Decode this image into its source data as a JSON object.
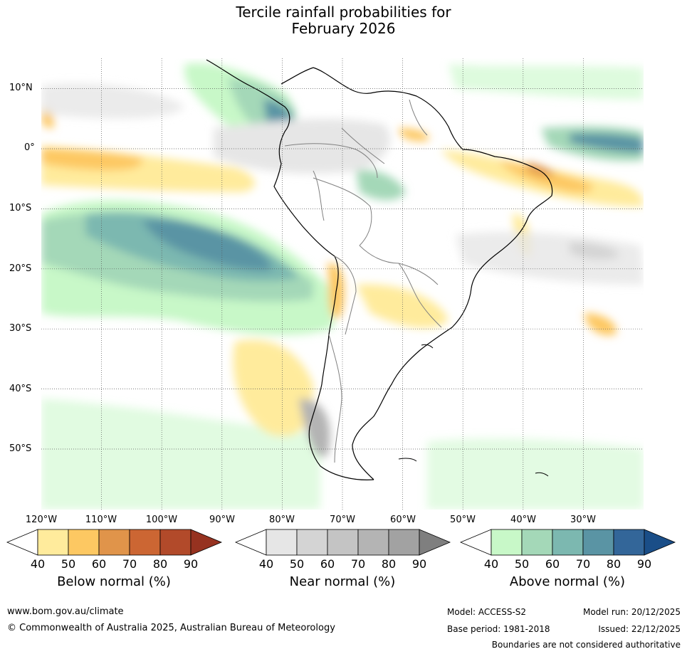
{
  "title": {
    "line1": "Tercile rainfall probabilities for",
    "line2": "February 2026"
  },
  "map": {
    "lat_labels": [
      "10°N",
      "0°",
      "10°S",
      "20°S",
      "30°S",
      "40°S",
      "50°S"
    ],
    "lon_labels": [
      "120°W",
      "110°W",
      "100°W",
      "90°W",
      "80°W",
      "70°W",
      "60°W",
      "50°W",
      "40°W",
      "30°W"
    ]
  },
  "legend": {
    "below": {
      "label": "Below normal (%)",
      "ticks": [
        "40",
        "50",
        "60",
        "70",
        "80",
        "90"
      ],
      "colors": [
        "#ffffff",
        "#ffeb9c",
        "#fdc862",
        "#e0944a",
        "#cc6633",
        "#b24a2a",
        "#963220"
      ]
    },
    "near": {
      "label": "Near normal (%)",
      "ticks": [
        "40",
        "50",
        "60",
        "70",
        "80",
        "90"
      ],
      "colors": [
        "#ffffff",
        "#e6e6e6",
        "#d4d4d4",
        "#c4c4c4",
        "#b4b4b4",
        "#a2a2a2",
        "#7f7f7f"
      ]
    },
    "above": {
      "label": "Above normal (%)",
      "ticks": [
        "40",
        "50",
        "60",
        "70",
        "80",
        "90"
      ],
      "colors": [
        "#ffffff",
        "#c8f8c8",
        "#a4d8b8",
        "#7cb8b0",
        "#5a94a4",
        "#336699",
        "#1a4e88"
      ]
    }
  },
  "footer": {
    "website": "www.bom.gov.au/climate",
    "copyright": "© Commonwealth of Australia 2025, Australian Bureau of Meteorology",
    "model": "Model: ACCESS-S2",
    "model_run": "Model run: 20/12/2025",
    "base_period": "Base period: 1981-2018",
    "issued": "Issued: 22/12/2025",
    "disclaimer": "Boundaries are not considered authoritative"
  }
}
